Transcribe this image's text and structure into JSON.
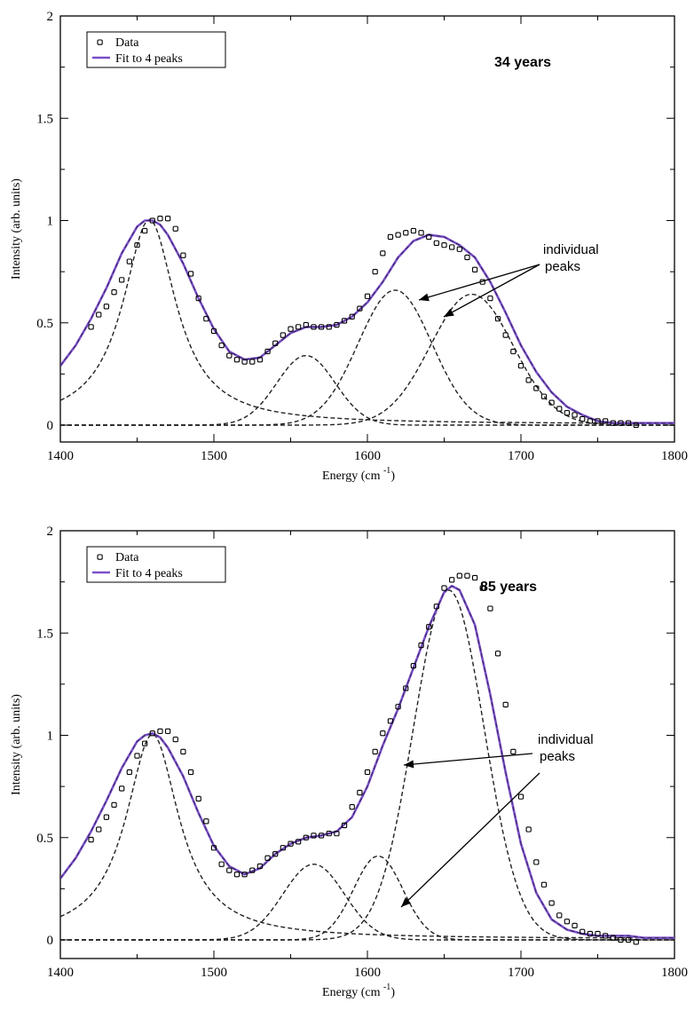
{
  "chart_data": [
    {
      "type": "line",
      "title": "34 years",
      "xlabel": "Energy (cm",
      "xlabel_sup": "-1",
      "xlabel_close": ")",
      "ylabel": "Intensity (arb. units)",
      "xlim": [
        1400,
        1800
      ],
      "ylim": [
        -0.1,
        2.0
      ],
      "xticks": [
        1400,
        1500,
        1600,
        1700,
        1800
      ],
      "yticks": [
        0,
        0.5,
        1,
        1.5,
        2
      ],
      "ytick_labels": [
        "0",
        "0.5",
        "1",
        "1.5",
        "2"
      ],
      "legend": {
        "placement": "top-left",
        "entries": [
          "Data",
          "Fit to 4 peaks"
        ]
      },
      "annotation": [
        "individual",
        "peaks"
      ],
      "fit_color": "#7b4fc9",
      "data_series": {
        "name": "Data",
        "x": [
          1420,
          1425,
          1430,
          1435,
          1440,
          1445,
          1450,
          1455,
          1460,
          1465,
          1470,
          1475,
          1480,
          1485,
          1490,
          1495,
          1500,
          1505,
          1510,
          1515,
          1520,
          1525,
          1530,
          1535,
          1540,
          1545,
          1550,
          1555,
          1560,
          1565,
          1570,
          1575,
          1580,
          1585,
          1590,
          1595,
          1600,
          1605,
          1610,
          1615,
          1620,
          1625,
          1630,
          1635,
          1640,
          1645,
          1650,
          1655,
          1660,
          1665,
          1670,
          1675,
          1680,
          1685,
          1690,
          1695,
          1700,
          1705,
          1710,
          1715,
          1720,
          1725,
          1730,
          1735,
          1740,
          1745,
          1750,
          1755,
          1760,
          1765,
          1770,
          1775
        ],
        "y": [
          0.48,
          0.54,
          0.58,
          0.65,
          0.71,
          0.8,
          0.88,
          0.95,
          1.0,
          1.01,
          1.01,
          0.96,
          0.83,
          0.74,
          0.62,
          0.52,
          0.46,
          0.39,
          0.34,
          0.32,
          0.31,
          0.31,
          0.32,
          0.36,
          0.4,
          0.44,
          0.47,
          0.48,
          0.49,
          0.48,
          0.48,
          0.48,
          0.49,
          0.51,
          0.53,
          0.57,
          0.63,
          0.75,
          0.84,
          0.92,
          0.93,
          0.94,
          0.95,
          0.94,
          0.92,
          0.89,
          0.88,
          0.87,
          0.86,
          0.82,
          0.76,
          0.7,
          0.62,
          0.52,
          0.44,
          0.36,
          0.29,
          0.22,
          0.18,
          0.14,
          0.11,
          0.08,
          0.06,
          0.05,
          0.03,
          0.02,
          0.02,
          0.02,
          0.01,
          0.01,
          0.01,
          0.0
        ]
      },
      "fit_series": {
        "name": "Fit to 4 peaks",
        "x": [
          1400,
          1410,
          1420,
          1430,
          1440,
          1450,
          1455,
          1460,
          1465,
          1470,
          1480,
          1490,
          1500,
          1510,
          1520,
          1530,
          1540,
          1550,
          1560,
          1570,
          1580,
          1590,
          1600,
          1610,
          1620,
          1630,
          1640,
          1650,
          1660,
          1670,
          1680,
          1690,
          1700,
          1710,
          1720,
          1730,
          1740,
          1750,
          1760,
          1770,
          1780,
          1790,
          1800
        ],
        "y": [
          0.29,
          0.39,
          0.52,
          0.67,
          0.84,
          0.97,
          1.0,
          1.0,
          0.98,
          0.93,
          0.79,
          0.62,
          0.47,
          0.36,
          0.32,
          0.33,
          0.39,
          0.45,
          0.48,
          0.48,
          0.49,
          0.53,
          0.6,
          0.7,
          0.82,
          0.9,
          0.93,
          0.92,
          0.88,
          0.82,
          0.7,
          0.55,
          0.39,
          0.26,
          0.16,
          0.09,
          0.05,
          0.02,
          0.01,
          0.01,
          0.01,
          0.01,
          0.01
        ]
      },
      "peaks": [
        {
          "type": "lorentz",
          "center": 1458,
          "amp": 1.0,
          "width": 42,
          "offset": 0.005
        },
        {
          "type": "gauss",
          "center": 1560,
          "amp": 0.34,
          "sigma": 19
        },
        {
          "type": "gauss",
          "center": 1618,
          "amp": 0.66,
          "sigma": 24
        },
        {
          "type": "gauss",
          "center": 1668,
          "amp": 0.64,
          "sigma": 27
        }
      ]
    },
    {
      "type": "line",
      "title": "85 years",
      "xlabel": "Energy (cm",
      "xlabel_sup": "-1",
      "xlabel_close": ")",
      "ylabel": "Intensity (arb. units)",
      "xlim": [
        1400,
        1800
      ],
      "ylim": [
        -0.1,
        2.0
      ],
      "xticks": [
        1400,
        1500,
        1600,
        1700,
        1800
      ],
      "yticks": [
        0,
        0.5,
        1,
        1.5,
        2
      ],
      "ytick_labels": [
        "0",
        "0.5",
        "1",
        "1.5",
        "2"
      ],
      "legend": {
        "placement": "top-left",
        "entries": [
          "Data",
          "Fit to 4 peaks"
        ]
      },
      "annotation": [
        "individual",
        "peaks"
      ],
      "fit_color": "#7b4fc9",
      "data_series": {
        "name": "Data",
        "x": [
          1420,
          1425,
          1430,
          1435,
          1440,
          1445,
          1450,
          1455,
          1460,
          1465,
          1470,
          1475,
          1480,
          1485,
          1490,
          1495,
          1500,
          1505,
          1510,
          1515,
          1520,
          1525,
          1530,
          1535,
          1540,
          1545,
          1550,
          1555,
          1560,
          1565,
          1570,
          1575,
          1580,
          1585,
          1590,
          1595,
          1600,
          1605,
          1610,
          1615,
          1620,
          1625,
          1630,
          1635,
          1640,
          1645,
          1650,
          1655,
          1660,
          1665,
          1670,
          1675,
          1680,
          1685,
          1690,
          1695,
          1700,
          1705,
          1710,
          1715,
          1720,
          1725,
          1730,
          1735,
          1740,
          1745,
          1750,
          1755,
          1760,
          1765,
          1770,
          1775
        ],
        "y": [
          0.49,
          0.54,
          0.6,
          0.66,
          0.74,
          0.82,
          0.9,
          0.96,
          1.01,
          1.02,
          1.02,
          0.98,
          0.92,
          0.82,
          0.69,
          0.58,
          0.45,
          0.37,
          0.34,
          0.32,
          0.32,
          0.34,
          0.36,
          0.4,
          0.42,
          0.45,
          0.47,
          0.48,
          0.5,
          0.51,
          0.51,
          0.52,
          0.52,
          0.56,
          0.65,
          0.72,
          0.82,
          0.92,
          1.01,
          1.07,
          1.14,
          1.23,
          1.34,
          1.44,
          1.53,
          1.63,
          1.72,
          1.76,
          1.78,
          1.78,
          1.77,
          1.72,
          1.62,
          1.4,
          1.15,
          0.92,
          0.7,
          0.54,
          0.38,
          0.27,
          0.18,
          0.12,
          0.09,
          0.07,
          0.04,
          0.03,
          0.03,
          0.02,
          0.01,
          0.0,
          0.0,
          -0.01
        ]
      },
      "fit_series": {
        "name": "Fit to 4 peaks",
        "x": [
          1400,
          1410,
          1420,
          1430,
          1440,
          1450,
          1455,
          1460,
          1465,
          1470,
          1480,
          1490,
          1500,
          1510,
          1520,
          1530,
          1540,
          1550,
          1560,
          1570,
          1580,
          1590,
          1600,
          1610,
          1620,
          1630,
          1640,
          1650,
          1655,
          1660,
          1670,
          1680,
          1690,
          1700,
          1710,
          1720,
          1730,
          1740,
          1750,
          1760,
          1770,
          1780,
          1790,
          1800
        ],
        "y": [
          0.3,
          0.4,
          0.53,
          0.68,
          0.84,
          0.97,
          1.0,
          1.01,
          0.99,
          0.94,
          0.8,
          0.62,
          0.46,
          0.36,
          0.32,
          0.35,
          0.42,
          0.47,
          0.5,
          0.51,
          0.53,
          0.6,
          0.75,
          0.95,
          1.13,
          1.33,
          1.53,
          1.7,
          1.73,
          1.71,
          1.54,
          1.2,
          0.82,
          0.47,
          0.23,
          0.1,
          0.05,
          0.03,
          0.02,
          0.02,
          0.02,
          0.01,
          0.01,
          0.01
        ]
      },
      "peaks": [
        {
          "type": "lorentz",
          "center": 1460,
          "amp": 1.0,
          "width": 42,
          "offset": 0.005
        },
        {
          "type": "gauss",
          "center": 1565,
          "amp": 0.37,
          "sigma": 20
        },
        {
          "type": "gauss",
          "center": 1607,
          "amp": 0.41,
          "sigma": 16
        },
        {
          "type": "gauss",
          "center": 1653,
          "amp": 1.71,
          "sigma": 23
        }
      ]
    }
  ]
}
